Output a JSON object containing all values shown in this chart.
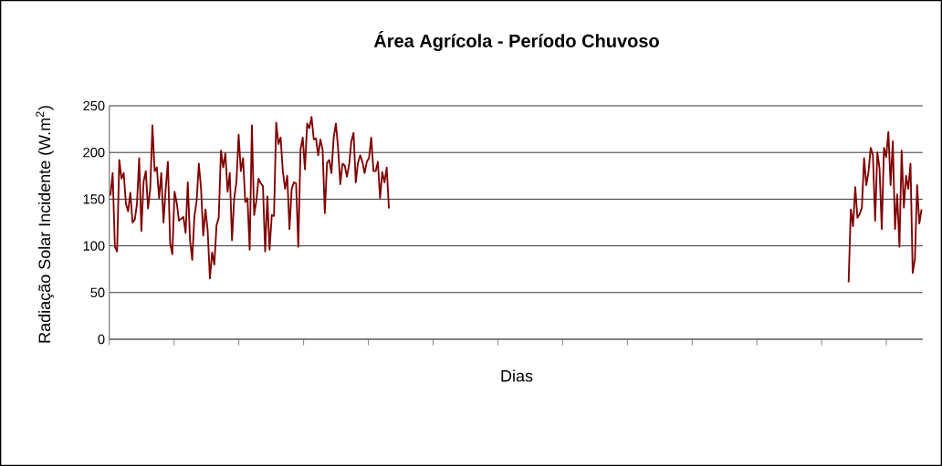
{
  "chart_data": {
    "type": "line",
    "title": "Área Agrícola - Período Chuvoso",
    "xlabel": "Dias",
    "ylabel": "Radiação Solar Incidente (W.m$^{2}$)",
    "categories": [
      null,
      null,
      null,
      null,
      null,
      null,
      null,
      null,
      null,
      null,
      null,
      null,
      null,
      null,
      null,
      null,
      null,
      null,
      null,
      null,
      null,
      null,
      null,
      null,
      null,
      null,
      null,
      null,
      null,
      null,
      null,
      null,
      null,
      null,
      null,
      null,
      null,
      null,
      null,
      null,
      null,
      null,
      null,
      null,
      null,
      null,
      null,
      null,
      null,
      null,
      null,
      null,
      null,
      null,
      null,
      null,
      null,
      null,
      null,
      null,
      null,
      null,
      null,
      null,
      null,
      null,
      null,
      null,
      null,
      null,
      null,
      null,
      null,
      null,
      null,
      null,
      null,
      null,
      null,
      null,
      null,
      null,
      null,
      null,
      null,
      null,
      null,
      null,
      null,
      null,
      null,
      null,
      null,
      null,
      null,
      null,
      null,
      null,
      null,
      null,
      null,
      null,
      null,
      null,
      null,
      null,
      null,
      null,
      null,
      null,
      null,
      null,
      null,
      null,
      null,
      null,
      null,
      null,
      null,
      null,
      null,
      null,
      null,
      null,
      null,
      null,
      null,
      null,
      null,
      null,
      null,
      null,
      null,
      null,
      null,
      null,
      null,
      null,
      null,
      null,
      null,
      null,
      null,
      null,
      null,
      null,
      null,
      null,
      null,
      null,
      null,
      null,
      null,
      null,
      null,
      null,
      null,
      null,
      null,
      null,
      null,
      null,
      null,
      null,
      null,
      null,
      null,
      null,
      null,
      null,
      null,
      null,
      null,
      null,
      null,
      null,
      null,
      null,
      null,
      null,
      null,
      null,
      null,
      null,
      null,
      null,
      null,
      null,
      null,
      null,
      null,
      null,
      null,
      null,
      null,
      null,
      null,
      null,
      null,
      null,
      null,
      null,
      null,
      null,
      null,
      null,
      null,
      null,
      null,
      null,
      null,
      null,
      null,
      null,
      null,
      null,
      null,
      null,
      null,
      null,
      null,
      null,
      null,
      null,
      null,
      null,
      null,
      null,
      null,
      null,
      null,
      null,
      null,
      null,
      null,
      null,
      null,
      null,
      null,
      null,
      null,
      null,
      null,
      null,
      null,
      null,
      null,
      null,
      null,
      null,
      null,
      null,
      null,
      null,
      null,
      null,
      null,
      null,
      null,
      null,
      null,
      null,
      null,
      null,
      null,
      null,
      null,
      null,
      null,
      null,
      null,
      null,
      null,
      null,
      null,
      null,
      null,
      null,
      null,
      null,
      null,
      null,
      null,
      null,
      null,
      null,
      null,
      null,
      null,
      null,
      null,
      null,
      null,
      null,
      null,
      null,
      null,
      null,
      null,
      null,
      null,
      null,
      null,
      null,
      null,
      null,
      null,
      null,
      null,
      null,
      null,
      null,
      null,
      null,
      null,
      null,
      null,
      null,
      null,
      null,
      null,
      null,
      null,
      null,
      null,
      null,
      null,
      null,
      null,
      null,
      null,
      null,
      null,
      null,
      null,
      null,
      null,
      null,
      null,
      null,
      null,
      null,
      null,
      null,
      null,
      null,
      null,
      null,
      null,
      null,
      null,
      null,
      null,
      null,
      null,
      null,
      null,
      null,
      null,
      null,
      null,
      null,
      null,
      null,
      null,
      null,
      null,
      null
    ],
    "series": [
      {
        "color": "#800000",
        "values": [
          154,
          178,
          99,
          94,
          192,
          172,
          178,
          145,
          137,
          157,
          125,
          128,
          145,
          194,
          116,
          169,
          180,
          140,
          161,
          229,
          180,
          184,
          151,
          178,
          125,
          161,
          190,
          103,
          91,
          158,
          146,
          127,
          129,
          131,
          114,
          168,
          106,
          85,
          132,
          148,
          188,
          161,
          111,
          139,
          116,
          65,
          93,
          80,
          122,
          130,
          202,
          184,
          199,
          158,
          178,
          106,
          151,
          168,
          219,
          180,
          194,
          147,
          151,
          96,
          229,
          133,
          148,
          172,
          167,
          164,
          94,
          153,
          96,
          133,
          132,
          232,
          209,
          216,
          180,
          161,
          175,
          118,
          161,
          168,
          167,
          99,
          203,
          216,
          182,
          231,
          226,
          238,
          214,
          215,
          197,
          214,
          203,
          135,
          189,
          192,
          178,
          216,
          231,
          205,
          166,
          188,
          186,
          174,
          187,
          212,
          221,
          168,
          189,
          197,
          190,
          178,
          190,
          194,
          216,
          180,
          180,
          190,
          151,
          179,
          168,
          184,
          140,
          null,
          null,
          null,
          null,
          null,
          null,
          null,
          null,
          null,
          null,
          null,
          null,
          null,
          null,
          null,
          null,
          null,
          null,
          null,
          null,
          null,
          null,
          null,
          null,
          null,
          null,
          null,
          null,
          null,
          null,
          null,
          null,
          null,
          null,
          null,
          null,
          null,
          null,
          null,
          null,
          null,
          null,
          null,
          null,
          null,
          null,
          null,
          null,
          null,
          null,
          null,
          null,
          null,
          null,
          null,
          null,
          null,
          null,
          null,
          null,
          null,
          null,
          null,
          null,
          null,
          null,
          null,
          null,
          null,
          null,
          null,
          null,
          null,
          null,
          null,
          null,
          null,
          null,
          null,
          null,
          null,
          null,
          null,
          null,
          null,
          null,
          null,
          null,
          null,
          null,
          null,
          null,
          null,
          null,
          null,
          null,
          null,
          null,
          null,
          null,
          null,
          null,
          null,
          null,
          null,
          null,
          null,
          null,
          null,
          null,
          null,
          null,
          null,
          null,
          null,
          null,
          null,
          null,
          null,
          null,
          null,
          null,
          null,
          null,
          null,
          null,
          null,
          null,
          null,
          null,
          null,
          null,
          null,
          null,
          null,
          null,
          null,
          null,
          null,
          null,
          null,
          null,
          null,
          null,
          null,
          null,
          null,
          null,
          null,
          null,
          null,
          null,
          null,
          null,
          null,
          null,
          null,
          null,
          null,
          null,
          null,
          null,
          null,
          null,
          null,
          null,
          null,
          null,
          null,
          null,
          null,
          null,
          null,
          null,
          null,
          null,
          null,
          null,
          null,
          null,
          null,
          null,
          null,
          null,
          null,
          null,
          null,
          null,
          null,
          null,
          null,
          null,
          null,
          null,
          null,
          null,
          null,
          null,
          null,
          null,
          null,
          null,
          null,
          null,
          null,
          null,
          null,
          61,
          139,
          121,
          163,
          130,
          134,
          141,
          194,
          165,
          179,
          205,
          197,
          127,
          200,
          183,
          118,
          205,
          195,
          222,
          165,
          212,
          118,
          155,
          99,
          202,
          141,
          175,
          161,
          188,
          71,
          86,
          165,
          124,
          139
        ]
      }
    ],
    "ylim": [
      0,
      250
    ],
    "yticks": [
      0,
      50,
      100,
      150,
      200,
      250
    ],
    "tick_labels": "y",
    "grid": "y",
    "marker": "none",
    "line_style": "solid"
  }
}
